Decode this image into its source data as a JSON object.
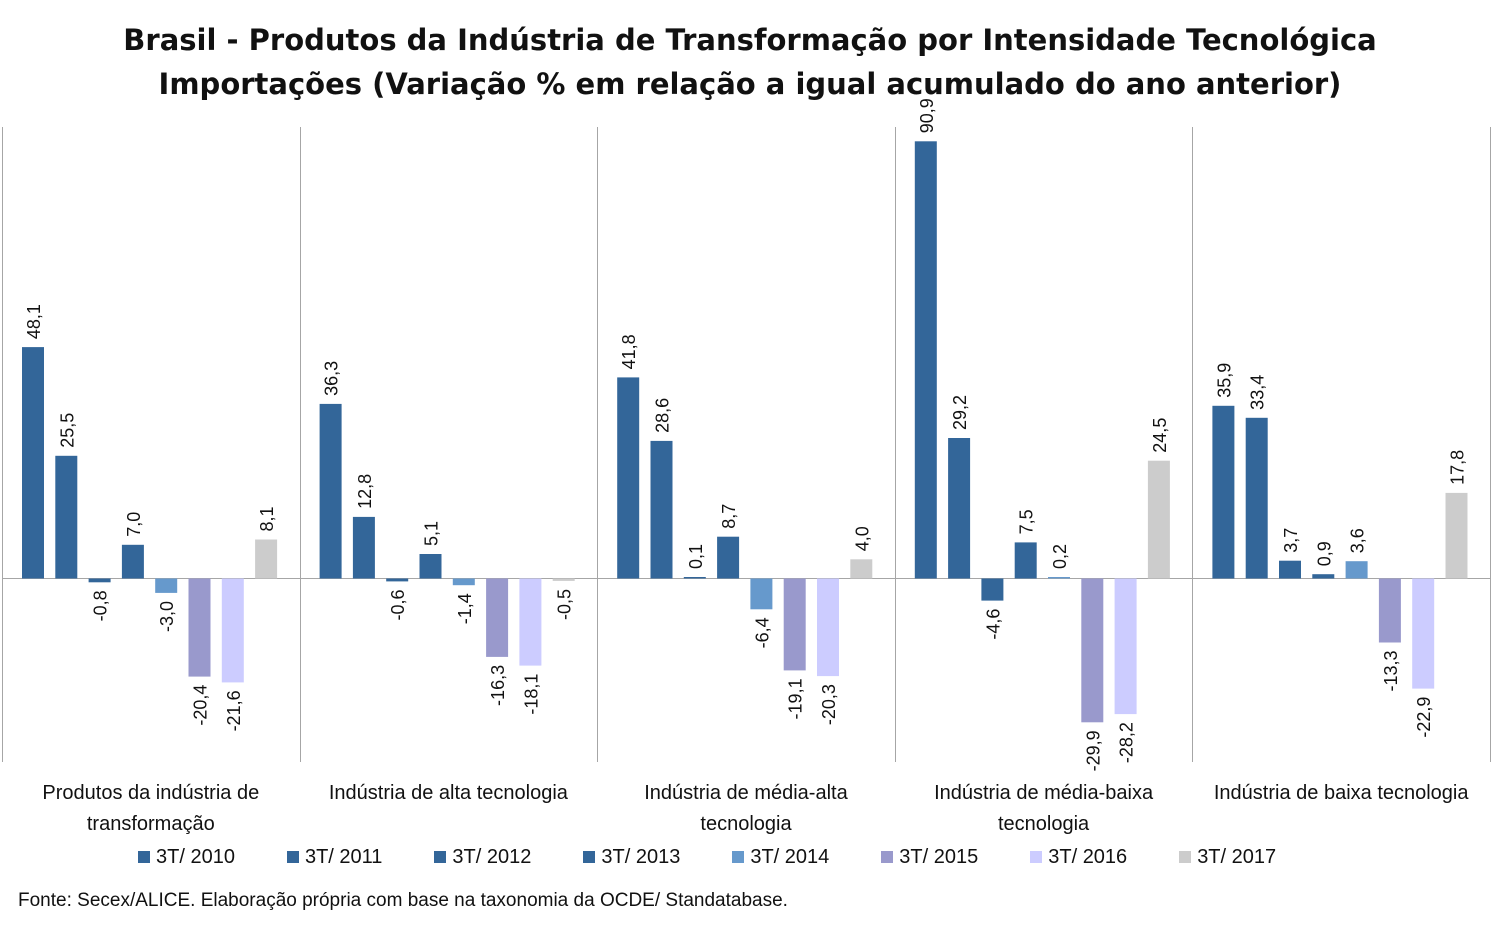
{
  "title": {
    "line1": "Brasil - Produtos da Indústria de Transformação por Intensidade Tecnológica",
    "line2": "Importações (Variação % em relação a igual acumulado do ano anterior)"
  },
  "source": "Fonte: Secex/ALICE. Elaboração própria com base na taxonomia da OCDE/ Standatabase.",
  "chart_data": {
    "type": "bar",
    "title": "Brasil - Produtos da Indústria de Transformação por Intensidade Tecnológica Importações (Variação % em relação a igual acumulado do ano anterior)",
    "categories": [
      "Produtos da indústria de transformação",
      "Indústria de alta tecnologia",
      "Indústria de média-alta tecnologia",
      "Indústria de média-baixa tecnologia",
      "Indústria de baixa tecnologia"
    ],
    "series": [
      {
        "name": "3T/ 2010",
        "color": "#336699",
        "values": [
          48.1,
          36.3,
          41.8,
          90.9,
          35.9
        ]
      },
      {
        "name": "3T/ 2011",
        "color": "#336699",
        "values": [
          25.5,
          12.8,
          28.6,
          29.2,
          33.4
        ]
      },
      {
        "name": "3T/ 2012",
        "color": "#336699",
        "values": [
          -0.8,
          -0.6,
          0.1,
          -4.6,
          3.7
        ]
      },
      {
        "name": "3T/ 2013",
        "color": "#336699",
        "values": [
          7.0,
          5.1,
          8.7,
          7.5,
          0.9
        ]
      },
      {
        "name": "3T/ 2014",
        "color": "#6699CC",
        "values": [
          -3.0,
          -1.4,
          -6.4,
          0.2,
          3.6
        ]
      },
      {
        "name": "3T/ 2015",
        "color": "#9999CC",
        "values": [
          -20.4,
          -16.3,
          -19.1,
          -29.9,
          -13.3
        ]
      },
      {
        "name": "3T/ 2016",
        "color": "#CCCCFF",
        "values": [
          -21.6,
          -18.1,
          -20.3,
          -28.2,
          -22.9
        ]
      },
      {
        "name": "3T/ 2017",
        "color": "#CCCCCC",
        "values": [
          8.1,
          -0.5,
          4.0,
          24.5,
          17.8
        ]
      }
    ],
    "data_labels": true,
    "legend_position": "bottom",
    "grid": false,
    "decimal_separator": ","
  }
}
